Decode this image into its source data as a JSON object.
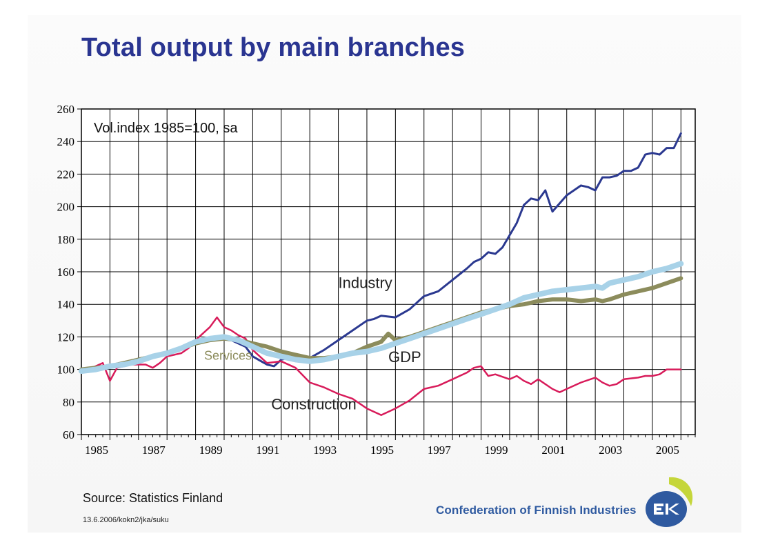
{
  "title": "Total output by main branches",
  "source": "Source: Statistics Finland",
  "footnote": "13.6.2006/kokn2/jka/suku",
  "organization": "Confederation of Finnish Industries",
  "logo_text": "EK",
  "colors": {
    "title": "#2a3591",
    "industry": "#2b3990",
    "construction": "#d81b5a",
    "services": "#8c8c5c",
    "gdp": "#a8d2e8",
    "org": "#2f5aa0"
  },
  "chart_data": {
    "type": "line",
    "annotation": "Vol.index 1985=100, sa",
    "ylim": [
      60,
      260
    ],
    "y_ticks": [
      60,
      80,
      100,
      120,
      140,
      160,
      180,
      200,
      220,
      240,
      260
    ],
    "xlim": [
      1985,
      2006.5
    ],
    "x_ticks": [
      "1985",
      "1987",
      "1989",
      "1991",
      "1993",
      "1995",
      "1997",
      "1999",
      "2001",
      "2003",
      "2005"
    ],
    "grid": true,
    "series": [
      {
        "name": "Industry",
        "color": "#2b3990",
        "points": [
          [
            1985.25,
            100
          ],
          [
            1985.75,
            102
          ],
          [
            1986.25,
            103
          ],
          [
            1986.75,
            104
          ],
          [
            1987.25,
            107
          ],
          [
            1987.75,
            109
          ],
          [
            1988.25,
            112
          ],
          [
            1988.75,
            115
          ],
          [
            1989.25,
            117
          ],
          [
            1989.75,
            119
          ],
          [
            1990.25,
            118
          ],
          [
            1990.75,
            114
          ],
          [
            1991.0,
            108
          ],
          [
            1991.5,
            103
          ],
          [
            1991.75,
            102
          ],
          [
            1992.0,
            106
          ],
          [
            1992.5,
            108
          ],
          [
            1993.0,
            107
          ],
          [
            1993.5,
            112
          ],
          [
            1994.0,
            118
          ],
          [
            1994.5,
            124
          ],
          [
            1995.0,
            130
          ],
          [
            1995.25,
            131
          ],
          [
            1995.5,
            133
          ],
          [
            1996.0,
            132
          ],
          [
            1996.5,
            137
          ],
          [
            1997.0,
            145
          ],
          [
            1997.5,
            148
          ],
          [
            1998.0,
            155
          ],
          [
            1998.5,
            162
          ],
          [
            1998.75,
            166
          ],
          [
            1999.0,
            168
          ],
          [
            1999.25,
            172
          ],
          [
            1999.5,
            171
          ],
          [
            1999.75,
            175
          ],
          [
            2000.25,
            190
          ],
          [
            2000.5,
            201
          ],
          [
            2000.75,
            205
          ],
          [
            2001.0,
            204
          ],
          [
            2001.25,
            210
          ],
          [
            2001.5,
            197
          ],
          [
            2001.75,
            202
          ],
          [
            2002.0,
            207
          ],
          [
            2002.5,
            213
          ],
          [
            2002.75,
            212
          ],
          [
            2003.0,
            210
          ],
          [
            2003.25,
            218
          ],
          [
            2003.5,
            218
          ],
          [
            2003.75,
            219
          ],
          [
            2004.0,
            222
          ],
          [
            2004.25,
            222
          ],
          [
            2004.5,
            224
          ],
          [
            2004.75,
            232
          ],
          [
            2005.0,
            233
          ],
          [
            2005.25,
            232
          ],
          [
            2005.5,
            236
          ],
          [
            2005.75,
            236
          ],
          [
            2006.0,
            245
          ]
        ],
        "stroke": 3
      },
      {
        "name": "Construction",
        "color": "#d81b5a",
        "points": [
          [
            1985.0,
            99
          ],
          [
            1985.5,
            102
          ],
          [
            1985.75,
            104
          ],
          [
            1986.0,
            93
          ],
          [
            1986.25,
            101
          ],
          [
            1986.75,
            103
          ],
          [
            1987.25,
            103
          ],
          [
            1987.5,
            101
          ],
          [
            1987.75,
            104
          ],
          [
            1988.0,
            108
          ],
          [
            1988.5,
            110
          ],
          [
            1988.75,
            113
          ],
          [
            1989.0,
            118
          ],
          [
            1989.5,
            126
          ],
          [
            1989.75,
            132
          ],
          [
            1990.0,
            126
          ],
          [
            1990.25,
            124
          ],
          [
            1990.5,
            121
          ],
          [
            1990.75,
            119
          ],
          [
            1991.0,
            112
          ],
          [
            1991.5,
            104
          ],
          [
            1992.0,
            105
          ],
          [
            1992.5,
            101
          ],
          [
            1993.0,
            92
          ],
          [
            1993.5,
            89
          ],
          [
            1994.0,
            85
          ],
          [
            1994.5,
            82
          ],
          [
            1995.0,
            76
          ],
          [
            1995.5,
            72
          ],
          [
            1995.75,
            74
          ],
          [
            1996.0,
            76
          ],
          [
            1996.5,
            81
          ],
          [
            1997.0,
            88
          ],
          [
            1997.5,
            90
          ],
          [
            1998.0,
            94
          ],
          [
            1998.5,
            98
          ],
          [
            1998.75,
            101
          ],
          [
            1999.0,
            102
          ],
          [
            1999.25,
            96
          ],
          [
            1999.5,
            97
          ],
          [
            2000.0,
            94
          ],
          [
            2000.25,
            96
          ],
          [
            2000.5,
            93
          ],
          [
            2000.75,
            91
          ],
          [
            2001.0,
            94
          ],
          [
            2001.5,
            88
          ],
          [
            2001.75,
            86
          ],
          [
            2002.0,
            88
          ],
          [
            2002.5,
            92
          ],
          [
            2003.0,
            95
          ],
          [
            2003.25,
            92
          ],
          [
            2003.5,
            90
          ],
          [
            2003.75,
            91
          ],
          [
            2004.0,
            94
          ],
          [
            2004.5,
            95
          ],
          [
            2004.75,
            96
          ],
          [
            2005.0,
            96
          ],
          [
            2005.25,
            97
          ],
          [
            2005.5,
            100
          ],
          [
            2006.0,
            100
          ]
        ],
        "stroke": 2.5
      },
      {
        "name": "Services",
        "color": "#8c8c5c",
        "points": [
          [
            1985.0,
            100
          ],
          [
            1985.5,
            101
          ],
          [
            1986.0,
            102
          ],
          [
            1986.5,
            104
          ],
          [
            1987.0,
            106
          ],
          [
            1987.5,
            108
          ],
          [
            1988.0,
            110
          ],
          [
            1988.5,
            113
          ],
          [
            1989.0,
            116
          ],
          [
            1989.5,
            118
          ],
          [
            1990.0,
            119
          ],
          [
            1990.5,
            118
          ],
          [
            1991.0,
            116
          ],
          [
            1991.5,
            114
          ],
          [
            1992.0,
            111
          ],
          [
            1992.5,
            109
          ],
          [
            1993.0,
            107
          ],
          [
            1993.5,
            107
          ],
          [
            1994.0,
            108
          ],
          [
            1994.5,
            110
          ],
          [
            1995.0,
            114
          ],
          [
            1995.5,
            117
          ],
          [
            1995.75,
            122
          ],
          [
            1996.0,
            118
          ],
          [
            1996.5,
            120
          ],
          [
            1997.0,
            123
          ],
          [
            1997.5,
            126
          ],
          [
            1998.0,
            129
          ],
          [
            1998.5,
            132
          ],
          [
            1999.0,
            135
          ],
          [
            1999.5,
            137
          ],
          [
            2000.0,
            139
          ],
          [
            2000.5,
            140
          ],
          [
            2001.0,
            142
          ],
          [
            2001.5,
            143
          ],
          [
            2002.0,
            143
          ],
          [
            2002.5,
            142
          ],
          [
            2003.0,
            143
          ],
          [
            2003.25,
            142
          ],
          [
            2003.5,
            143
          ],
          [
            2004.0,
            146
          ],
          [
            2004.5,
            148
          ],
          [
            2005.0,
            150
          ],
          [
            2005.5,
            153
          ],
          [
            2006.0,
            156
          ]
        ],
        "stroke": 6
      },
      {
        "name": "GDP",
        "color": "#a8d2e8",
        "points": [
          [
            1985.0,
            99
          ],
          [
            1985.5,
            100
          ],
          [
            1986.0,
            102
          ],
          [
            1986.5,
            103
          ],
          [
            1987.0,
            105
          ],
          [
            1987.5,
            108
          ],
          [
            1988.0,
            110
          ],
          [
            1988.5,
            113
          ],
          [
            1989.0,
            117
          ],
          [
            1989.5,
            119
          ],
          [
            1990.0,
            120
          ],
          [
            1990.5,
            118
          ],
          [
            1991.0,
            114
          ],
          [
            1991.5,
            110
          ],
          [
            1992.0,
            108
          ],
          [
            1992.5,
            106
          ],
          [
            1993.0,
            105
          ],
          [
            1993.5,
            106
          ],
          [
            1994.0,
            108
          ],
          [
            1994.5,
            110
          ],
          [
            1995.0,
            111
          ],
          [
            1995.5,
            113
          ],
          [
            1996.0,
            116
          ],
          [
            1996.5,
            119
          ],
          [
            1997.0,
            122
          ],
          [
            1997.5,
            125
          ],
          [
            1998.0,
            128
          ],
          [
            1998.5,
            131
          ],
          [
            1999.0,
            134
          ],
          [
            1999.5,
            137
          ],
          [
            2000.0,
            140
          ],
          [
            2000.5,
            144
          ],
          [
            2001.0,
            146
          ],
          [
            2001.5,
            148
          ],
          [
            2002.0,
            149
          ],
          [
            2002.5,
            150
          ],
          [
            2003.0,
            151
          ],
          [
            2003.25,
            150
          ],
          [
            2003.5,
            153
          ],
          [
            2004.0,
            155
          ],
          [
            2004.5,
            157
          ],
          [
            2005.0,
            160
          ],
          [
            2005.5,
            162
          ],
          [
            2006.0,
            165
          ]
        ],
        "stroke": 8
      }
    ],
    "series_labels": [
      {
        "name": "Industry",
        "x": 1994.0,
        "y": 150,
        "size": 22,
        "color": "#222222"
      },
      {
        "name": "Services",
        "x": 1989.3,
        "y": 106,
        "size": 18,
        "color": "#8c8c5c"
      },
      {
        "name": "GDP",
        "x": 1995.75,
        "y": 104.5,
        "size": 22,
        "color": "#222222"
      },
      {
        "name": "Construction",
        "x": 1991.65,
        "y": 75.5,
        "size": 22,
        "color": "#222222"
      }
    ]
  }
}
